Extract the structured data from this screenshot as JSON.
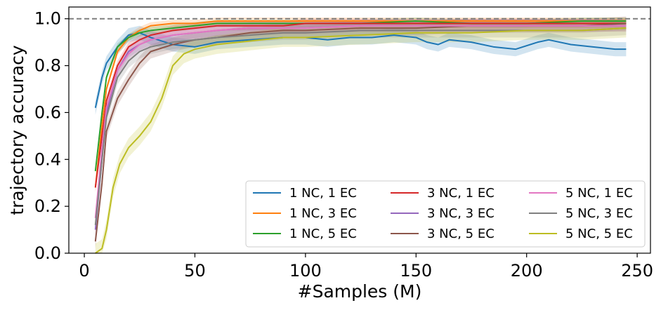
{
  "chart_data": {
    "type": "line",
    "xlabel": "#Samples (M)",
    "ylabel": "trajectory accuracy",
    "xlim": [
      -7,
      256
    ],
    "ylim": [
      0.0,
      1.05
    ],
    "xticks": [
      0,
      50,
      100,
      150,
      200,
      250
    ],
    "xtick_labels": [
      "0",
      "50",
      "100",
      "150",
      "200",
      "250"
    ],
    "yticks": [
      0.0,
      0.2,
      0.4,
      0.6,
      0.8,
      1.0
    ],
    "ytick_labels": [
      "0.0",
      "0.2",
      "0.4",
      "0.6",
      "0.8",
      "1.0"
    ],
    "reference_line": {
      "y": 1.0,
      "style": "dashed",
      "color": "#7f7f7f"
    },
    "grid": false,
    "legend_position": "lower-right",
    "legend_columns": 3,
    "series": [
      {
        "name": "1 NC, 1 EC",
        "color": "#1f77b4",
        "x": [
          5,
          8,
          10,
          15,
          20,
          25,
          30,
          40,
          50,
          60,
          75,
          90,
          100,
          110,
          120,
          130,
          140,
          150,
          155,
          160,
          165,
          175,
          185,
          195,
          205,
          210,
          220,
          230,
          240,
          245
        ],
        "y": [
          0.62,
          0.75,
          0.81,
          0.88,
          0.93,
          0.94,
          0.92,
          0.89,
          0.88,
          0.9,
          0.91,
          0.92,
          0.92,
          0.91,
          0.92,
          0.92,
          0.93,
          0.92,
          0.9,
          0.89,
          0.91,
          0.9,
          0.88,
          0.87,
          0.9,
          0.91,
          0.89,
          0.88,
          0.87,
          0.87
        ],
        "band": 0.03
      },
      {
        "name": "1 NC, 3 EC",
        "color": "#ff7f0e",
        "x": [
          5,
          8,
          10,
          15,
          20,
          25,
          30,
          40,
          50,
          60,
          75,
          90,
          100,
          125,
          150,
          175,
          200,
          225,
          245
        ],
        "y": [
          0.28,
          0.55,
          0.7,
          0.86,
          0.92,
          0.95,
          0.97,
          0.98,
          0.98,
          0.99,
          0.99,
          0.99,
          0.99,
          0.99,
          0.99,
          0.99,
          0.99,
          0.99,
          0.99
        ],
        "band": 0.015
      },
      {
        "name": "1 NC, 5 EC",
        "color": "#2ca02c",
        "x": [
          5,
          8,
          10,
          15,
          20,
          25,
          30,
          40,
          50,
          60,
          75,
          90,
          100,
          125,
          150,
          175,
          200,
          225,
          245
        ],
        "y": [
          0.35,
          0.6,
          0.75,
          0.88,
          0.92,
          0.94,
          0.95,
          0.96,
          0.97,
          0.98,
          0.98,
          0.98,
          0.98,
          0.98,
          0.99,
          0.98,
          0.98,
          0.99,
          0.99
        ],
        "band": 0.015
      },
      {
        "name": "3 NC, 1 EC",
        "color": "#d62728",
        "x": [
          5,
          8,
          10,
          15,
          20,
          25,
          30,
          40,
          50,
          60,
          75,
          90,
          100,
          125,
          150,
          175,
          200,
          225,
          245
        ],
        "y": [
          0.28,
          0.5,
          0.65,
          0.8,
          0.88,
          0.91,
          0.93,
          0.95,
          0.96,
          0.97,
          0.97,
          0.97,
          0.98,
          0.98,
          0.98,
          0.98,
          0.98,
          0.98,
          0.98
        ],
        "band": 0.02
      },
      {
        "name": "3 NC, 3 EC",
        "color": "#9467bd",
        "x": [
          5,
          8,
          10,
          15,
          20,
          25,
          30,
          40,
          50,
          60,
          75,
          90,
          100,
          125,
          150,
          175,
          200,
          225,
          245
        ],
        "y": [
          0.1,
          0.4,
          0.6,
          0.78,
          0.86,
          0.89,
          0.91,
          0.93,
          0.94,
          0.95,
          0.96,
          0.96,
          0.96,
          0.97,
          0.97,
          0.97,
          0.97,
          0.97,
          0.97
        ],
        "band": 0.025
      },
      {
        "name": "3 NC, 5 EC",
        "color": "#8c564b",
        "x": [
          5,
          8,
          10,
          15,
          20,
          25,
          30,
          40,
          50,
          60,
          75,
          90,
          100,
          125,
          150,
          175,
          200,
          225,
          245
        ],
        "y": [
          0.05,
          0.3,
          0.52,
          0.66,
          0.74,
          0.81,
          0.86,
          0.89,
          0.91,
          0.92,
          0.94,
          0.95,
          0.95,
          0.96,
          0.96,
          0.97,
          0.97,
          0.97,
          0.98
        ],
        "band": 0.03
      },
      {
        "name": "5 NC, 1 EC",
        "color": "#e377c2",
        "x": [
          5,
          8,
          10,
          15,
          20,
          25,
          30,
          40,
          50,
          60,
          75,
          90,
          100,
          125,
          150,
          175,
          200,
          225,
          245
        ],
        "y": [
          0.15,
          0.45,
          0.62,
          0.78,
          0.85,
          0.89,
          0.91,
          0.93,
          0.94,
          0.95,
          0.96,
          0.96,
          0.96,
          0.97,
          0.97,
          0.97,
          0.97,
          0.97,
          0.97
        ],
        "band": 0.025
      },
      {
        "name": "5 NC, 3 EC",
        "color": "#7f7f7f",
        "x": [
          5,
          8,
          10,
          15,
          20,
          25,
          30,
          40,
          50,
          60,
          75,
          90,
          100,
          125,
          150,
          175,
          200,
          225,
          245
        ],
        "y": [
          0.12,
          0.4,
          0.58,
          0.75,
          0.82,
          0.86,
          0.88,
          0.9,
          0.91,
          0.92,
          0.93,
          0.94,
          0.94,
          0.95,
          0.95,
          0.95,
          0.95,
          0.95,
          0.96
        ],
        "band": 0.03
      },
      {
        "name": "5 NC, 5 EC",
        "color": "#bcbd22",
        "x": [
          5,
          8,
          10,
          13,
          16,
          20,
          25,
          30,
          35,
          40,
          45,
          50,
          60,
          70,
          80,
          90,
          100,
          125,
          150,
          175,
          200,
          225,
          245
        ],
        "y": [
          0.0,
          0.02,
          0.1,
          0.28,
          0.38,
          0.45,
          0.5,
          0.56,
          0.66,
          0.8,
          0.85,
          0.87,
          0.89,
          0.9,
          0.91,
          0.92,
          0.92,
          0.93,
          0.94,
          0.94,
          0.95,
          0.95,
          0.96
        ],
        "band": 0.04
      }
    ]
  }
}
